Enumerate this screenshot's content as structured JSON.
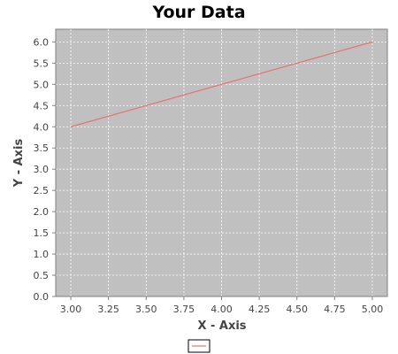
{
  "chart_data": {
    "type": "line",
    "title": "Your Data",
    "xlabel": "X - Axis",
    "ylabel": "Y - Axis",
    "xlim": [
      2.9,
      5.1
    ],
    "ylim": [
      0.0,
      6.3
    ],
    "x_ticks": [
      "3.00",
      "3.25",
      "3.50",
      "3.75",
      "4.00",
      "4.25",
      "4.50",
      "4.75",
      "5.00"
    ],
    "y_ticks": [
      "0.0",
      "0.5",
      "1.0",
      "1.5",
      "2.0",
      "2.5",
      "3.0",
      "3.5",
      "4.0",
      "4.5",
      "5.0",
      "5.5",
      "6.0"
    ],
    "grid": true,
    "legend_position": "bottom",
    "series": [
      {
        "name": "",
        "color": "#e8736c",
        "x": [
          3.0,
          5.0
        ],
        "y": [
          4.0,
          6.0
        ]
      }
    ],
    "colors": {
      "plot_background": "#c0c0c0",
      "grid": "#ffffff",
      "axis": "#808080"
    }
  }
}
